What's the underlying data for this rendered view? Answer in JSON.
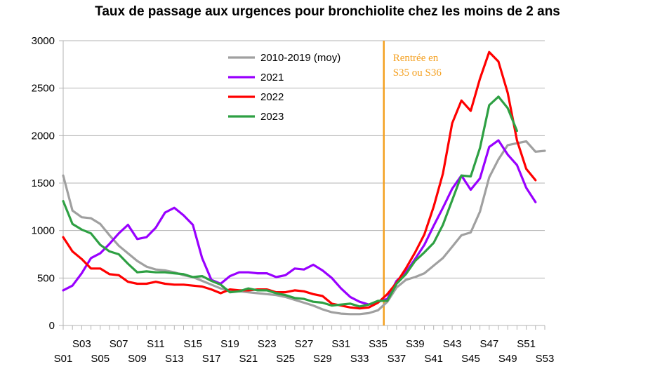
{
  "chart_data": {
    "type": "line",
    "title": "Taux de passage aux urgences pour bronchiolite chez les moins de 2 ans",
    "xlabel": "",
    "ylabel": "",
    "ylim": [
      0,
      3000
    ],
    "yticks": [
      0,
      500,
      1000,
      1500,
      2000,
      2500,
      3000
    ],
    "ytick_labels": [
      "0",
      "500",
      "1000",
      "1500",
      "2000",
      "2500",
      "3000"
    ],
    "grid": true,
    "legend_position": "top-center",
    "xtick_labels_upper": [
      "S03",
      "S07",
      "S11",
      "S15",
      "S19",
      "S23",
      "S27",
      "S31",
      "S35",
      "S39",
      "S43",
      "S47",
      "S51"
    ],
    "xtick_labels_lower": [
      "S01",
      "S05",
      "S09",
      "S13",
      "S17",
      "S21",
      "S25",
      "S29",
      "S33",
      "S37",
      "S41",
      "S45",
      "S49",
      "S53"
    ],
    "x": [
      1,
      2,
      3,
      4,
      5,
      6,
      7,
      8,
      9,
      10,
      11,
      12,
      13,
      14,
      15,
      16,
      17,
      18,
      19,
      20,
      21,
      22,
      23,
      24,
      25,
      26,
      27,
      28,
      29,
      30,
      31,
      32,
      33,
      34,
      35,
      36,
      37,
      38,
      39,
      40,
      41,
      42,
      43,
      44,
      45,
      46,
      47,
      48,
      49,
      50,
      51,
      52,
      53
    ],
    "series": [
      {
        "name": "2010-2019 (moy)",
        "color": "#a0a0a0",
        "values": [
          1580,
          1210,
          1140,
          1130,
          1070,
          950,
          840,
          760,
          680,
          620,
          590,
          580,
          560,
          530,
          510,
          470,
          430,
          390,
          370,
          360,
          350,
          340,
          330,
          320,
          300,
          270,
          240,
          210,
          170,
          140,
          125,
          120,
          120,
          130,
          160,
          250,
          400,
          480,
          510,
          550,
          630,
          710,
          830,
          950,
          980,
          1200,
          1560,
          1750,
          1900,
          1920,
          1940,
          1830,
          1840
        ]
      },
      {
        "name": "2021",
        "color": "#9900ff",
        "values": [
          370,
          420,
          550,
          710,
          760,
          860,
          970,
          1060,
          910,
          930,
          1030,
          1190,
          1240,
          1160,
          1060,
          710,
          480,
          440,
          520,
          560,
          560,
          550,
          550,
          510,
          530,
          600,
          590,
          640,
          580,
          500,
          390,
          300,
          250,
          220,
          250,
          280,
          470,
          560,
          700,
          850,
          1050,
          1240,
          1440,
          1580,
          1430,
          1550,
          1880,
          1950,
          1800,
          1690,
          1450,
          1300,
          null
        ]
      },
      {
        "name": "2022",
        "color": "#ff0000",
        "values": [
          930,
          780,
          700,
          600,
          600,
          540,
          530,
          460,
          440,
          440,
          460,
          440,
          430,
          430,
          420,
          410,
          380,
          340,
          380,
          370,
          370,
          380,
          380,
          350,
          350,
          370,
          360,
          330,
          310,
          230,
          210,
          190,
          180,
          190,
          240,
          330,
          450,
          600,
          770,
          960,
          1250,
          1600,
          2130,
          2370,
          2260,
          2600,
          2880,
          2780,
          2450,
          1950,
          1650,
          1530,
          null
        ]
      },
      {
        "name": "2023",
        "color": "#2ea043",
        "values": [
          1310,
          1070,
          1010,
          970,
          850,
          780,
          750,
          650,
          560,
          570,
          560,
          560,
          550,
          540,
          510,
          520,
          470,
          430,
          350,
          360,
          390,
          370,
          370,
          340,
          320,
          290,
          280,
          250,
          240,
          210,
          220,
          230,
          200,
          220,
          260,
          260,
          440,
          540,
          680,
          770,
          870,
          1060,
          1320,
          1580,
          1570,
          1870,
          2320,
          2410,
          2290,
          2050,
          null,
          null,
          null
        ]
      }
    ],
    "annotations": [
      {
        "text_line1": "Rentrée en",
        "text_line2": "S35 ou S36",
        "x": 36,
        "color": "#f4a020"
      }
    ]
  }
}
